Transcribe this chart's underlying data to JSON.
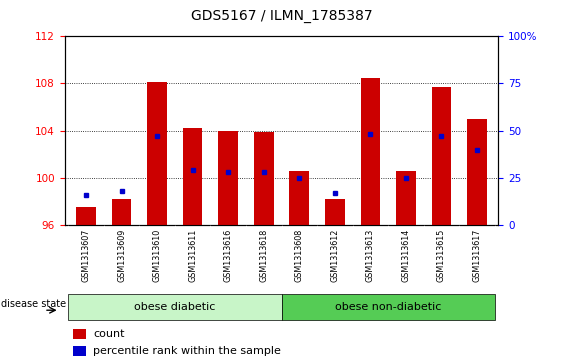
{
  "title": "GDS5167 / ILMN_1785387",
  "samples": [
    "GSM1313607",
    "GSM1313609",
    "GSM1313610",
    "GSM1313611",
    "GSM1313616",
    "GSM1313618",
    "GSM1313608",
    "GSM1313612",
    "GSM1313613",
    "GSM1313614",
    "GSM1313615",
    "GSM1313617"
  ],
  "bar_base": 96,
  "bar_tops": [
    97.5,
    98.2,
    108.1,
    104.2,
    104.0,
    103.9,
    100.6,
    98.2,
    108.5,
    100.6,
    107.7,
    105.0
  ],
  "percentile_values": [
    16,
    18,
    47,
    29,
    28,
    28,
    25,
    17,
    48,
    25,
    47,
    40
  ],
  "ylim_left": [
    96,
    112
  ],
  "ylim_right": [
    0,
    100
  ],
  "yticks_left": [
    96,
    100,
    104,
    108,
    112
  ],
  "yticks_right": [
    0,
    25,
    50,
    75,
    100
  ],
  "bar_color": "#cc0000",
  "percentile_color": "#0000cc",
  "group1_label": "obese diabetic",
  "group2_label": "obese non-diabetic",
  "group1_indices": [
    0,
    1,
    2,
    3,
    4,
    5
  ],
  "group2_indices": [
    6,
    7,
    8,
    9,
    10,
    11
  ],
  "group1_bg": "#c8f5c8",
  "group2_bg": "#55cc55",
  "disease_label": "disease state",
  "legend_count": "count",
  "legend_percentile": "percentile rank within the sample"
}
